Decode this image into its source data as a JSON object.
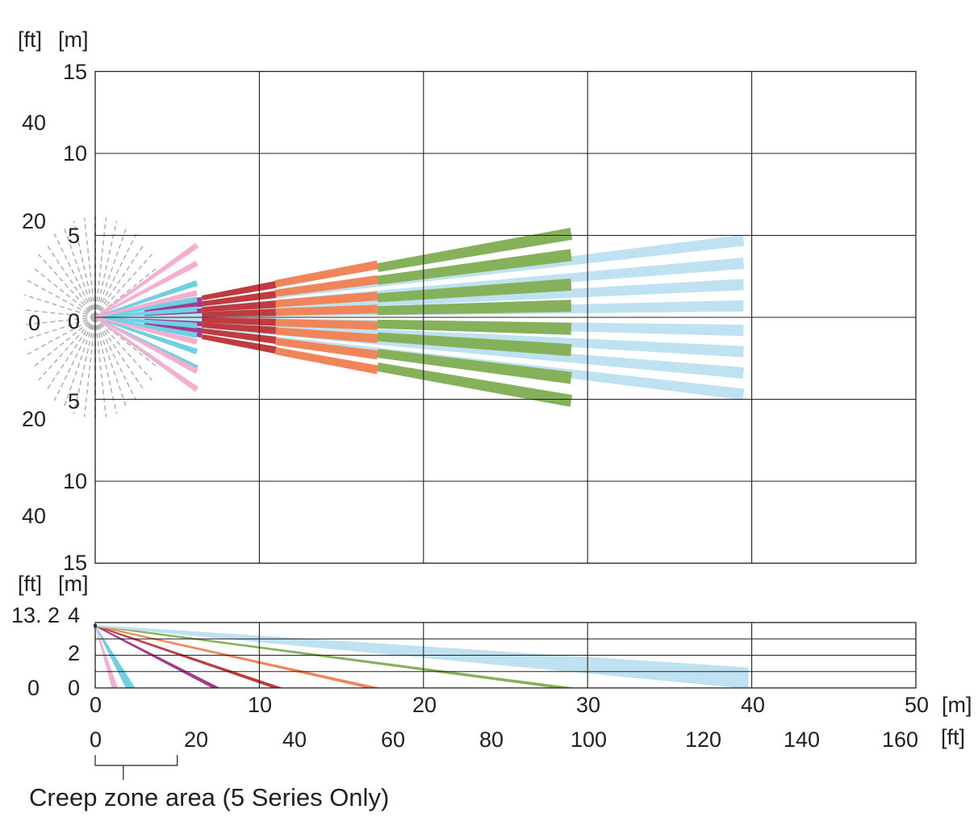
{
  "top_view": {
    "unit_ft": "[ft]",
    "unit_m": "[m]",
    "m_ticks": [
      "15",
      "10",
      "5",
      "0",
      "5",
      "10",
      "15"
    ],
    "ft_ticks": [
      "40",
      "20",
      "0",
      "20",
      "40"
    ]
  },
  "side_view": {
    "unit_ft": "[ft]",
    "unit_m": "[m]",
    "height_ft": "13. 2",
    "ft_zero": "0",
    "m_ticks": [
      "4",
      "2",
      "0"
    ]
  },
  "x_axis": {
    "m_ticks": [
      "0",
      "10",
      "20",
      "30",
      "40",
      "50"
    ],
    "m_unit": "[m]",
    "ft_ticks": [
      "0",
      "20",
      "40",
      "60",
      "80",
      "100",
      "120",
      "140",
      "160"
    ],
    "ft_unit": "[ft]"
  },
  "creep_zone": {
    "label": "Creep zone area (5 Series Only)"
  },
  "chart_data": {
    "type": "detection-pattern",
    "x_range_m": [
      0,
      50
    ],
    "top_y_range_m": [
      -15,
      15
    ],
    "side_y_range_m": [
      0,
      4
    ],
    "mount_height_m": 3.8,
    "colors": {
      "light_blue": "#bfe2f2",
      "green": "#84b159",
      "orange": "#f0855a",
      "red": "#bf3b3f",
      "purple": "#a43a8f",
      "cyan": "#6fcfe3",
      "pink": "#f3afcf",
      "grey": "#b3b3b3",
      "grid": "#231f20"
    },
    "top_beams": [
      {
        "color": "light_blue",
        "start_m": 0,
        "end_m": 39.5,
        "end_y_m": [
          4.7,
          3.3,
          2.0,
          0.7,
          -0.8,
          -2.1,
          -3.4,
          -4.7
        ]
      },
      {
        "color": "green",
        "start_m": 17.2,
        "end_m": 29,
        "end_y_m": [
          5.1,
          3.8,
          2.0,
          0.7,
          -0.7,
          -2.0,
          -3.7,
          -5.1
        ]
      },
      {
        "color": "orange",
        "start_m": 11,
        "end_m": 17.2,
        "end_y_m": [
          3.2,
          2.3,
          1.3,
          0.5,
          -0.5,
          -1.3,
          -2.3,
          -3.2
        ]
      },
      {
        "color": "red",
        "start_m": 6.5,
        "end_m": 11,
        "end_y_m": [
          2.0,
          1.4,
          0.8,
          0.3,
          -0.3,
          -0.8,
          -1.4,
          -2.0
        ]
      },
      {
        "color": "purple",
        "start_m": 3,
        "end_m": 6.5,
        "end_y_m": [
          1.1,
          0.8,
          0.4,
          -0.4,
          -0.8,
          -1.1
        ]
      },
      {
        "color": "cyan",
        "start_m": 0,
        "end_m": 6.2,
        "end_y_m": [
          2.1,
          1.1,
          0.5,
          -0.5,
          -1.1,
          -2.1,
          -3.1
        ]
      },
      {
        "color": "pink",
        "start_m": 0,
        "end_m": 6.2,
        "end_y_m": [
          4.4,
          3.3,
          1.5,
          -1.5,
          -3.3,
          -4.4
        ]
      }
    ],
    "side_beams": [
      {
        "color": "pink",
        "end_x_m": 1.3
      },
      {
        "color": "cyan",
        "end_x_m": 2.3
      },
      {
        "color": "purple",
        "end_x_m": 7.5
      },
      {
        "color": "red",
        "end_x_m": 11.3
      },
      {
        "color": "orange",
        "end_x_m": 17.2
      },
      {
        "color": "green",
        "end_x_m": 29
      },
      {
        "color": "light_blue",
        "end_x_m": 39.8,
        "end_height_m": 0.6
      }
    ],
    "creep_zone_m": [
      0,
      5
    ]
  }
}
